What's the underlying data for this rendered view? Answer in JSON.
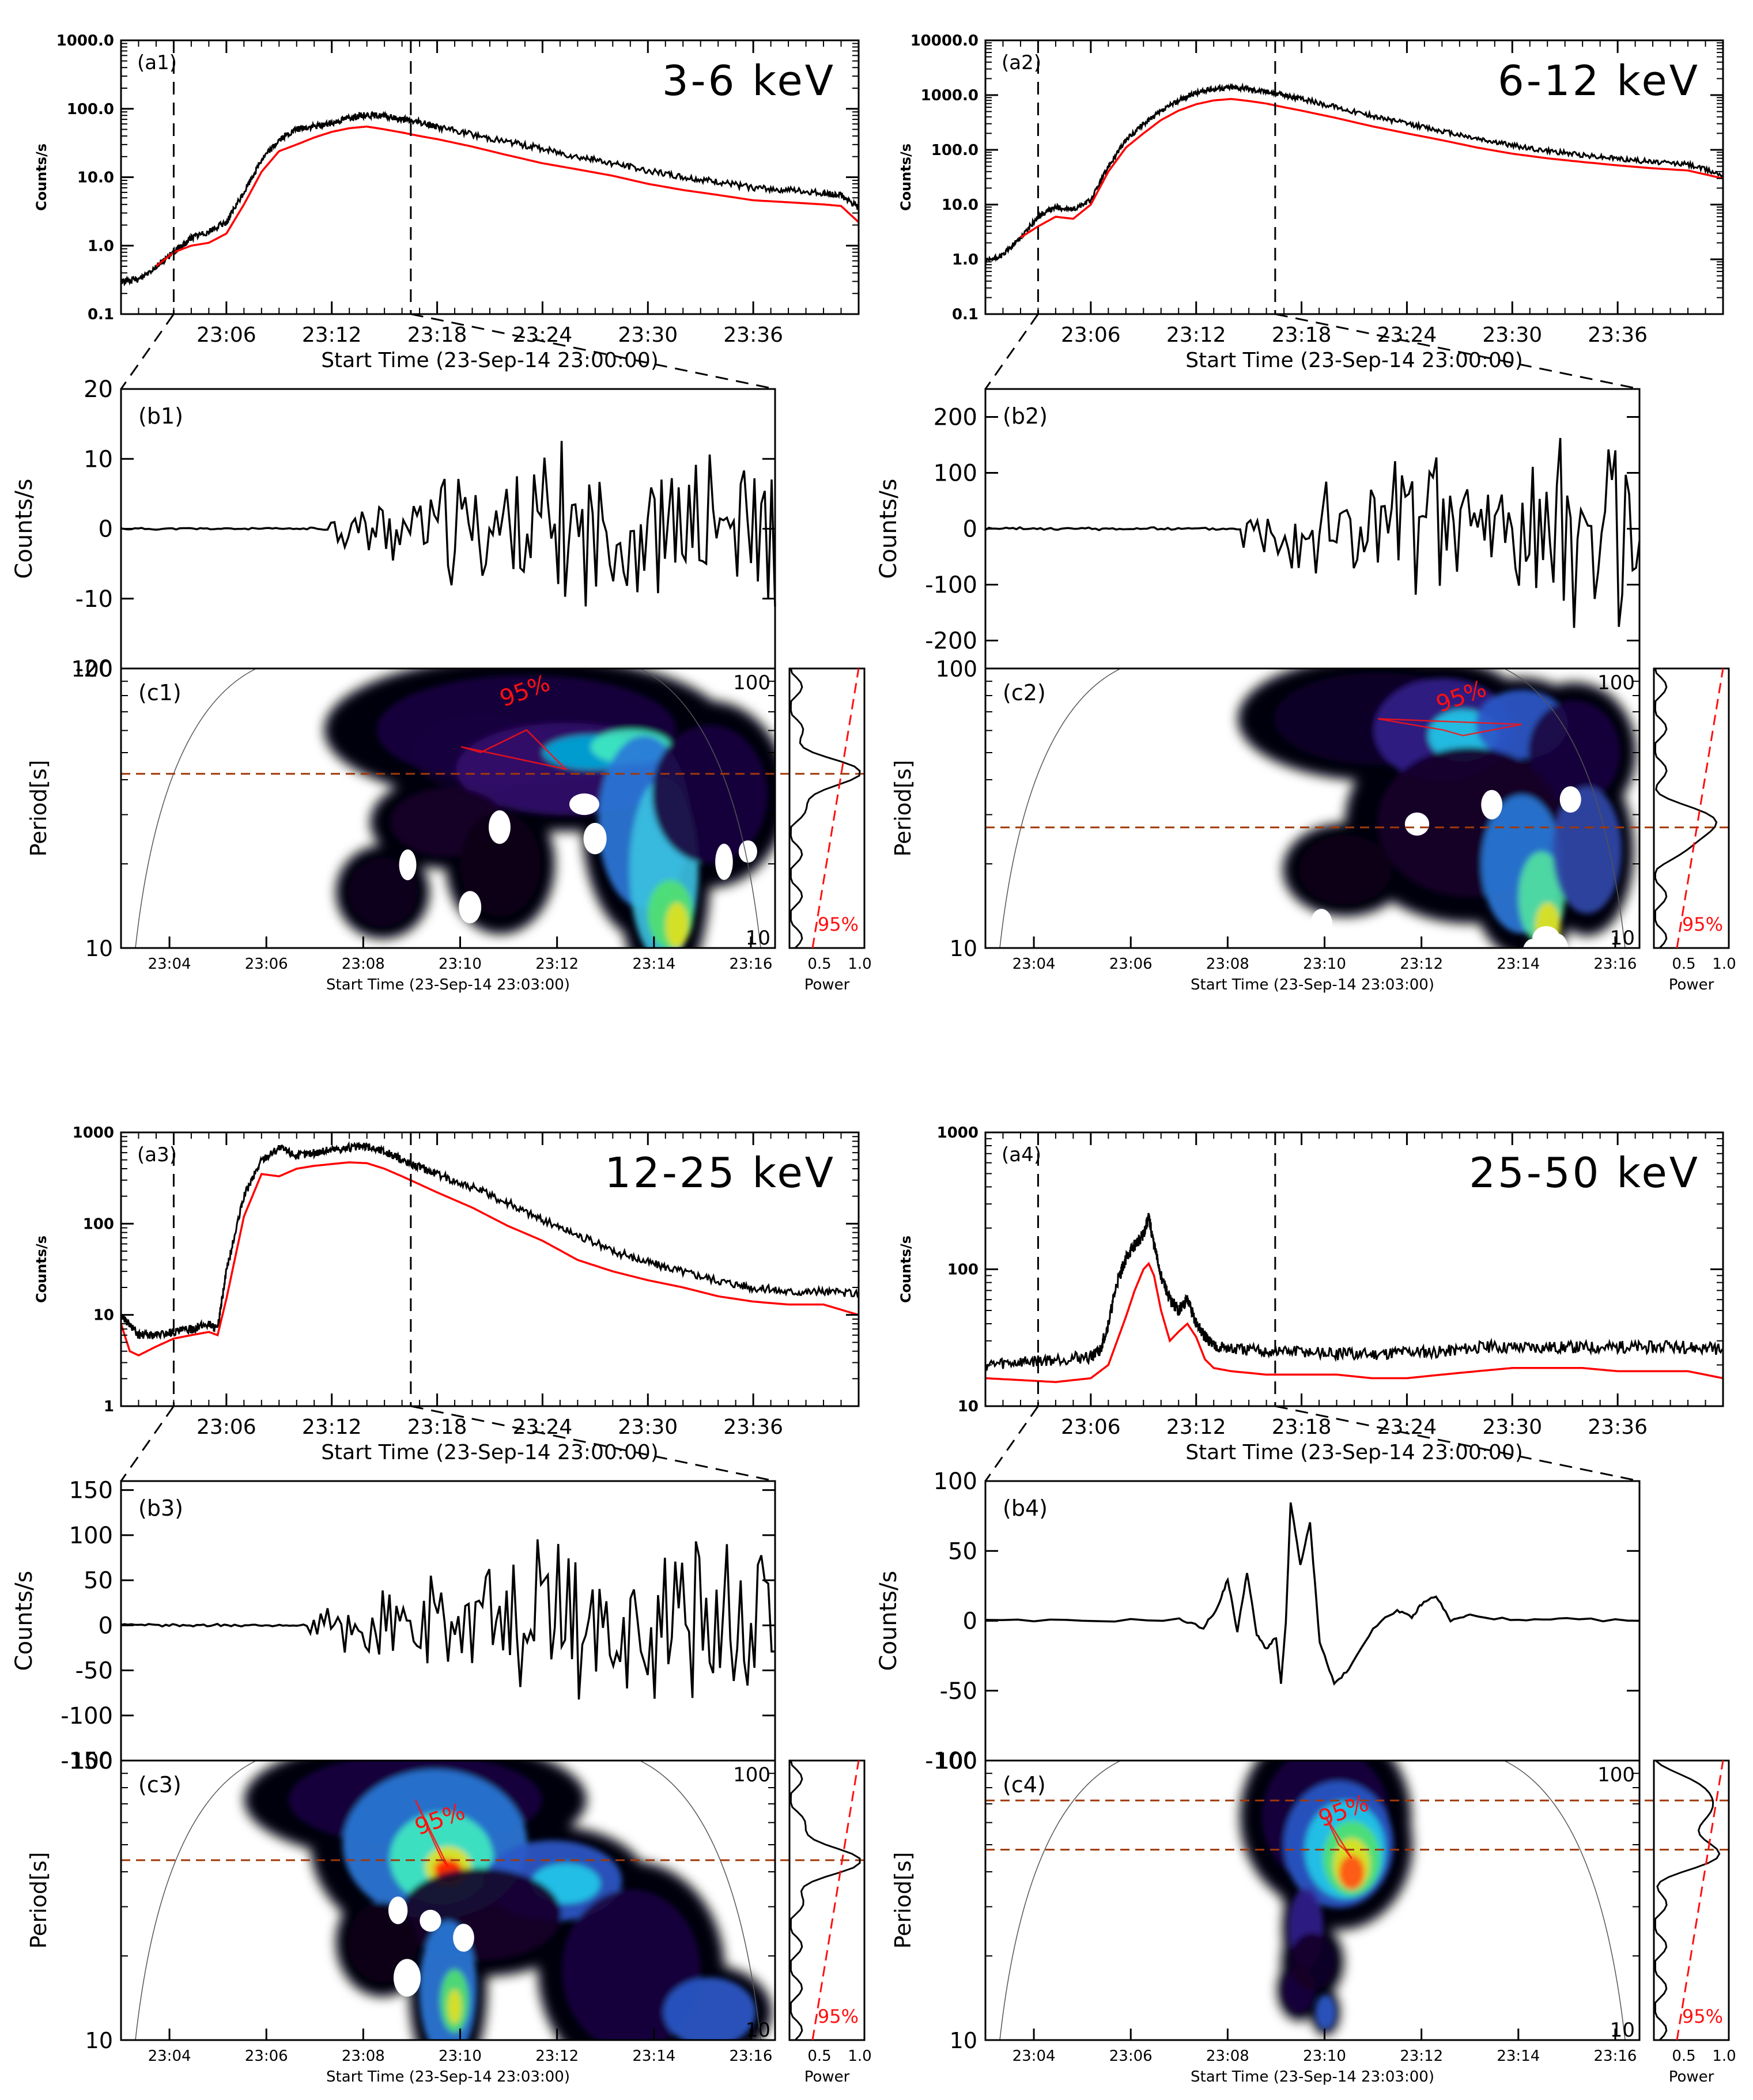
{
  "figure": {
    "description_labels": {
      "counts_axis": "Counts/s",
      "period_axis": "Period[s]",
      "power_axis": "Power",
      "confidence_label": "95%"
    }
  },
  "chart_data": [
    {
      "panel": "a1",
      "type": "line",
      "title": "3-6 keV",
      "label": "(a1)",
      "xlabel": "Start Time (23-Sep-14 23:00:00)",
      "ylabel": "Counts/s",
      "yscale": "log",
      "ylim": [
        0.1,
        1000
      ],
      "yticks": [
        "0.1",
        "1.0",
        "10.0",
        "100.0",
        "1000.0"
      ],
      "xlim_min": [
        0,
        42
      ],
      "xticks": [
        "23:06",
        "23:12",
        "23:18",
        "23:24",
        "23:30",
        "23:36"
      ],
      "vlines_min": [
        3,
        16.5
      ],
      "series": [
        {
          "name": "black",
          "color": "#000000",
          "x": [
            0,
            1,
            2,
            3,
            3.5,
            4,
            5,
            6,
            7,
            8,
            9,
            10,
            11,
            12,
            13,
            14,
            15,
            16,
            17,
            18,
            20,
            22,
            24,
            26,
            28,
            30,
            32,
            34,
            36,
            38,
            40,
            41,
            42
          ],
          "y": [
            0.3,
            0.32,
            0.5,
            0.8,
            1.0,
            1.3,
            1.6,
            2.2,
            6,
            18,
            35,
            50,
            55,
            62,
            75,
            82,
            78,
            70,
            63,
            55,
            42,
            33,
            26,
            20,
            16,
            12.5,
            10,
            8.5,
            7,
            6.5,
            5.8,
            5.5,
            3.5
          ]
        },
        {
          "name": "red",
          "color": "#ff0000",
          "x": [
            2,
            3,
            4,
            5,
            6,
            7,
            8,
            9,
            10,
            11,
            12,
            13,
            14,
            15,
            16,
            17,
            18,
            20,
            22,
            24,
            26,
            28,
            30,
            32,
            34,
            36,
            38,
            40,
            41,
            42
          ],
          "y": [
            0.5,
            0.8,
            1.0,
            1.1,
            1.5,
            4,
            12,
            24,
            30,
            38,
            46,
            52,
            55,
            50,
            45,
            40,
            36,
            28,
            21,
            16,
            13,
            10.5,
            8,
            6.5,
            5.5,
            4.6,
            4.3,
            4.0,
            3.8,
            2.2
          ]
        }
      ]
    },
    {
      "panel": "a2",
      "type": "line",
      "title": "6-12 keV",
      "label": "(a2)",
      "xlabel": "Start Time (23-Sep-14 23:00:00)",
      "ylabel": "Counts/s",
      "yscale": "log",
      "ylim": [
        0.1,
        10000
      ],
      "yticks": [
        "0.1",
        "1.0",
        "10.0",
        "100.0",
        "1000.0",
        "10000.0"
      ],
      "xlim_min": [
        0,
        42
      ],
      "xticks": [
        "23:06",
        "23:12",
        "23:18",
        "23:24",
        "23:30",
        "23:36"
      ],
      "vlines_min": [
        3,
        16.5
      ],
      "series": [
        {
          "name": "black",
          "color": "#000000",
          "x": [
            0,
            1,
            2,
            3,
            4,
            5,
            6,
            7,
            8,
            9,
            10,
            11,
            12,
            13,
            14,
            15,
            16,
            17,
            18,
            20,
            22,
            24,
            26,
            28,
            30,
            32,
            34,
            36,
            38,
            40,
            42
          ],
          "y": [
            0.9,
            1.2,
            2.5,
            6,
            9,
            8,
            12,
            50,
            150,
            300,
            500,
            800,
            1100,
            1300,
            1400,
            1300,
            1150,
            1000,
            850,
            600,
            420,
            300,
            220,
            160,
            120,
            95,
            80,
            70,
            60,
            55,
            35
          ]
        },
        {
          "name": "red",
          "color": "#ff0000",
          "x": [
            2,
            3,
            4,
            5,
            6,
            7,
            8,
            9,
            10,
            11,
            12,
            13,
            14,
            15,
            16,
            17,
            18,
            20,
            22,
            24,
            26,
            28,
            30,
            32,
            34,
            36,
            38,
            40,
            42
          ],
          "y": [
            2.5,
            4,
            6,
            5.5,
            10,
            40,
            110,
            200,
            350,
            520,
            680,
            800,
            850,
            780,
            700,
            600,
            520,
            380,
            270,
            200,
            150,
            110,
            85,
            70,
            60,
            52,
            46,
            42,
            30
          ]
        }
      ]
    },
    {
      "panel": "a3",
      "type": "line",
      "title": "12-25 keV",
      "label": "(a3)",
      "xlabel": "Start Time (23-Sep-14 23:00:00)",
      "ylabel": "Counts/s",
      "yscale": "log",
      "ylim": [
        1,
        1000
      ],
      "yticks": [
        "1",
        "10",
        "100",
        "1000"
      ],
      "xlim_min": [
        0,
        42
      ],
      "xticks": [
        "23:06",
        "23:12",
        "23:18",
        "23:24",
        "23:30",
        "23:36"
      ],
      "vlines_min": [
        3,
        16.5
      ],
      "series": [
        {
          "name": "black",
          "color": "#000000",
          "x": [
            0,
            1,
            2,
            3,
            4,
            5,
            5.5,
            6,
            7,
            8,
            9,
            10,
            11,
            12,
            13,
            14,
            15,
            16,
            17,
            18,
            20,
            22,
            24,
            26,
            28,
            30,
            32,
            34,
            36,
            38,
            40,
            42
          ],
          "y": [
            10,
            6,
            6,
            6.5,
            7,
            8,
            7,
            30,
            200,
            500,
            680,
            560,
            600,
            650,
            680,
            700,
            620,
            500,
            420,
            350,
            250,
            170,
            110,
            75,
            50,
            38,
            30,
            24,
            20,
            18,
            18,
            17
          ]
        },
        {
          "name": "red",
          "color": "#ff0000",
          "x": [
            0,
            0.5,
            1,
            2,
            3,
            4,
            5,
            5.5,
            6,
            7,
            8,
            9,
            10,
            11,
            12,
            13,
            14,
            15,
            16,
            17,
            18,
            20,
            22,
            24,
            26,
            28,
            30,
            32,
            34,
            36,
            38,
            40,
            42
          ],
          "y": [
            8,
            4,
            3.6,
            4.5,
            5.5,
            6,
            6.5,
            6,
            15,
            120,
            350,
            330,
            400,
            430,
            450,
            470,
            460,
            400,
            330,
            270,
            220,
            150,
            95,
            65,
            40,
            30,
            24,
            20,
            16,
            14,
            13,
            13,
            10
          ]
        }
      ]
    },
    {
      "panel": "a4",
      "type": "line",
      "title": "25-50 keV",
      "label": "(a4)",
      "xlabel": "Start Time (23-Sep-14 23:00:00)",
      "ylabel": "Counts/s",
      "yscale": "log",
      "ylim": [
        10,
        1000
      ],
      "yticks": [
        "10",
        "100",
        "1000"
      ],
      "xlim_min": [
        0,
        42
      ],
      "xticks": [
        "23:06",
        "23:12",
        "23:18",
        "23:24",
        "23:30",
        "23:36"
      ],
      "vlines_min": [
        3,
        16.5
      ],
      "series": [
        {
          "name": "black",
          "color": "#000000",
          "x": [
            0,
            2,
            4,
            6,
            6.5,
            7,
            7.5,
            8,
            8.5,
            9,
            9.3,
            9.6,
            10,
            10.5,
            11,
            11.5,
            12,
            12.5,
            13,
            14,
            16,
            18,
            20,
            22,
            24,
            26,
            28,
            30,
            32,
            34,
            36,
            38,
            40,
            42
          ],
          "y": [
            20,
            21,
            22,
            23,
            25,
            40,
            80,
            120,
            150,
            180,
            240,
            150,
            90,
            60,
            50,
            60,
            40,
            32,
            28,
            26,
            25,
            25,
            24,
            24,
            25,
            25,
            27,
            27,
            27,
            27,
            27,
            27,
            27,
            26
          ]
        },
        {
          "name": "red",
          "color": "#ff0000",
          "x": [
            0,
            2,
            4,
            6,
            7,
            8,
            8.5,
            9,
            9.3,
            9.6,
            10,
            10.5,
            11,
            11.5,
            12,
            12.5,
            13,
            14,
            16,
            18,
            20,
            22,
            24,
            26,
            28,
            30,
            32,
            34,
            36,
            38,
            40,
            42
          ],
          "y": [
            16,
            15.5,
            15,
            16,
            20,
            45,
            70,
            100,
            110,
            90,
            50,
            30,
            35,
            40,
            32,
            22,
            19,
            18,
            17,
            17,
            17,
            16,
            16,
            17,
            18,
            19,
            19,
            19,
            18,
            18,
            18,
            16
          ]
        }
      ]
    },
    {
      "panel": "b1",
      "type": "line",
      "label": "(b1)",
      "ylabel": "Counts/s",
      "ylim": [
        -20,
        20
      ],
      "yticks": [
        "-20",
        "-10",
        "0",
        "10",
        "20"
      ],
      "xlim_min": [
        3,
        16.5
      ],
      "envelope": {
        "amp": 13,
        "t_start": 7.3,
        "seed": 11
      }
    },
    {
      "panel": "b2",
      "type": "line",
      "label": "(b2)",
      "ylabel": "Counts/s",
      "ylim": [
        -250,
        250
      ],
      "yticks": [
        "-200",
        "-100",
        "0",
        "100",
        "200"
      ],
      "xlim_min": [
        3,
        16.5
      ],
      "envelope": {
        "amp": 200,
        "t_start": 8.3,
        "seed": 23
      }
    },
    {
      "panel": "b3",
      "type": "line",
      "label": "(b3)",
      "ylabel": "Counts/s",
      "ylim": [
        -150,
        160
      ],
      "yticks": [
        "-150",
        "-100",
        "-50",
        "0",
        "50",
        "100",
        "150"
      ],
      "xlim_min": [
        3,
        16.5
      ],
      "envelope": {
        "amp": 110,
        "t_start": 6.9,
        "seed": 37
      }
    },
    {
      "panel": "b4",
      "type": "line",
      "label": "(b4)",
      "ylabel": "Counts/s",
      "ylim": [
        -100,
        100
      ],
      "yticks": [
        "-100",
        "-50",
        "0",
        "50",
        "100"
      ],
      "xlim_min": [
        3,
        16.5
      ],
      "series": [
        {
          "name": "black",
          "color": "#000000",
          "x": [
            3,
            5,
            7,
            7.5,
            7.8,
            8.0,
            8.2,
            8.4,
            8.6,
            8.8,
            9.0,
            9.1,
            9.2,
            9.3,
            9.5,
            9.7,
            9.9,
            10.2,
            10.5,
            11,
            11.5,
            11.8,
            12,
            12.3,
            12.6,
            13,
            14,
            15,
            16.5
          ],
          "y": [
            0,
            0,
            1,
            -5,
            10,
            30,
            -8,
            35,
            -10,
            -20,
            -12,
            -45,
            -2,
            85,
            40,
            70,
            -15,
            -45,
            -35,
            -5,
            8,
            2,
            12,
            18,
            0,
            4,
            0,
            1,
            0
          ]
        }
      ]
    },
    {
      "panel": "c1",
      "type": "heatmap",
      "label": "(c1)",
      "ylabel": "Period[s]",
      "xlabel": "Start Time (23-Sep-14 23:03:00)",
      "xticks": [
        "23:04",
        "23:06",
        "23:08",
        "23:10",
        "23:12",
        "23:14",
        "23:16"
      ],
      "ylim": [
        10,
        100
      ],
      "yticks": [
        "10",
        "100"
      ],
      "hline_period": 42,
      "contour_label": "95%",
      "power_xticks": [
        "0.5",
        "1.0"
      ],
      "power_xlabel": "Power",
      "power_label": "95%"
    },
    {
      "panel": "c2",
      "type": "heatmap",
      "label": "(c2)",
      "ylabel": "Period[s]",
      "xlabel": "Start Time (23-Sep-14 23:03:00)",
      "xticks": [
        "23:04",
        "23:06",
        "23:08",
        "23:10",
        "23:12",
        "23:14",
        "23:16"
      ],
      "ylim": [
        10,
        100
      ],
      "yticks": [
        "10",
        "100"
      ],
      "hline_period": 27,
      "contour_label": "95%",
      "power_xticks": [
        "0.5",
        "1.0"
      ],
      "power_xlabel": "Power",
      "power_label": "95%"
    },
    {
      "panel": "c3",
      "type": "heatmap",
      "label": "(c3)",
      "ylabel": "Period[s]",
      "xlabel": "Start Time (23-Sep-14 23:03:00)",
      "xticks": [
        "23:04",
        "23:06",
        "23:08",
        "23:10",
        "23:12",
        "23:14",
        "23:16"
      ],
      "ylim": [
        10,
        100
      ],
      "yticks": [
        "10",
        "100"
      ],
      "hline_period": 44,
      "contour_label": "95%",
      "power_xticks": [
        "0.5",
        "1.0"
      ],
      "power_xlabel": "Power",
      "power_label": "95%"
    },
    {
      "panel": "c4",
      "type": "heatmap",
      "label": "(c4)",
      "ylabel": "Period[s]",
      "xlabel": "Start Time (23-Sep-14 23:03:00)",
      "xticks": [
        "23:04",
        "23:06",
        "23:08",
        "23:10",
        "23:12",
        "23:14",
        "23:16"
      ],
      "ylim": [
        10,
        100
      ],
      "yticks": [
        "10",
        "100"
      ],
      "hline_periods": [
        48,
        72
      ],
      "contour_label": "95%",
      "power_xticks": [
        "0.5",
        "1.0"
      ],
      "power_xlabel": "Power",
      "power_label": "95%"
    }
  ]
}
